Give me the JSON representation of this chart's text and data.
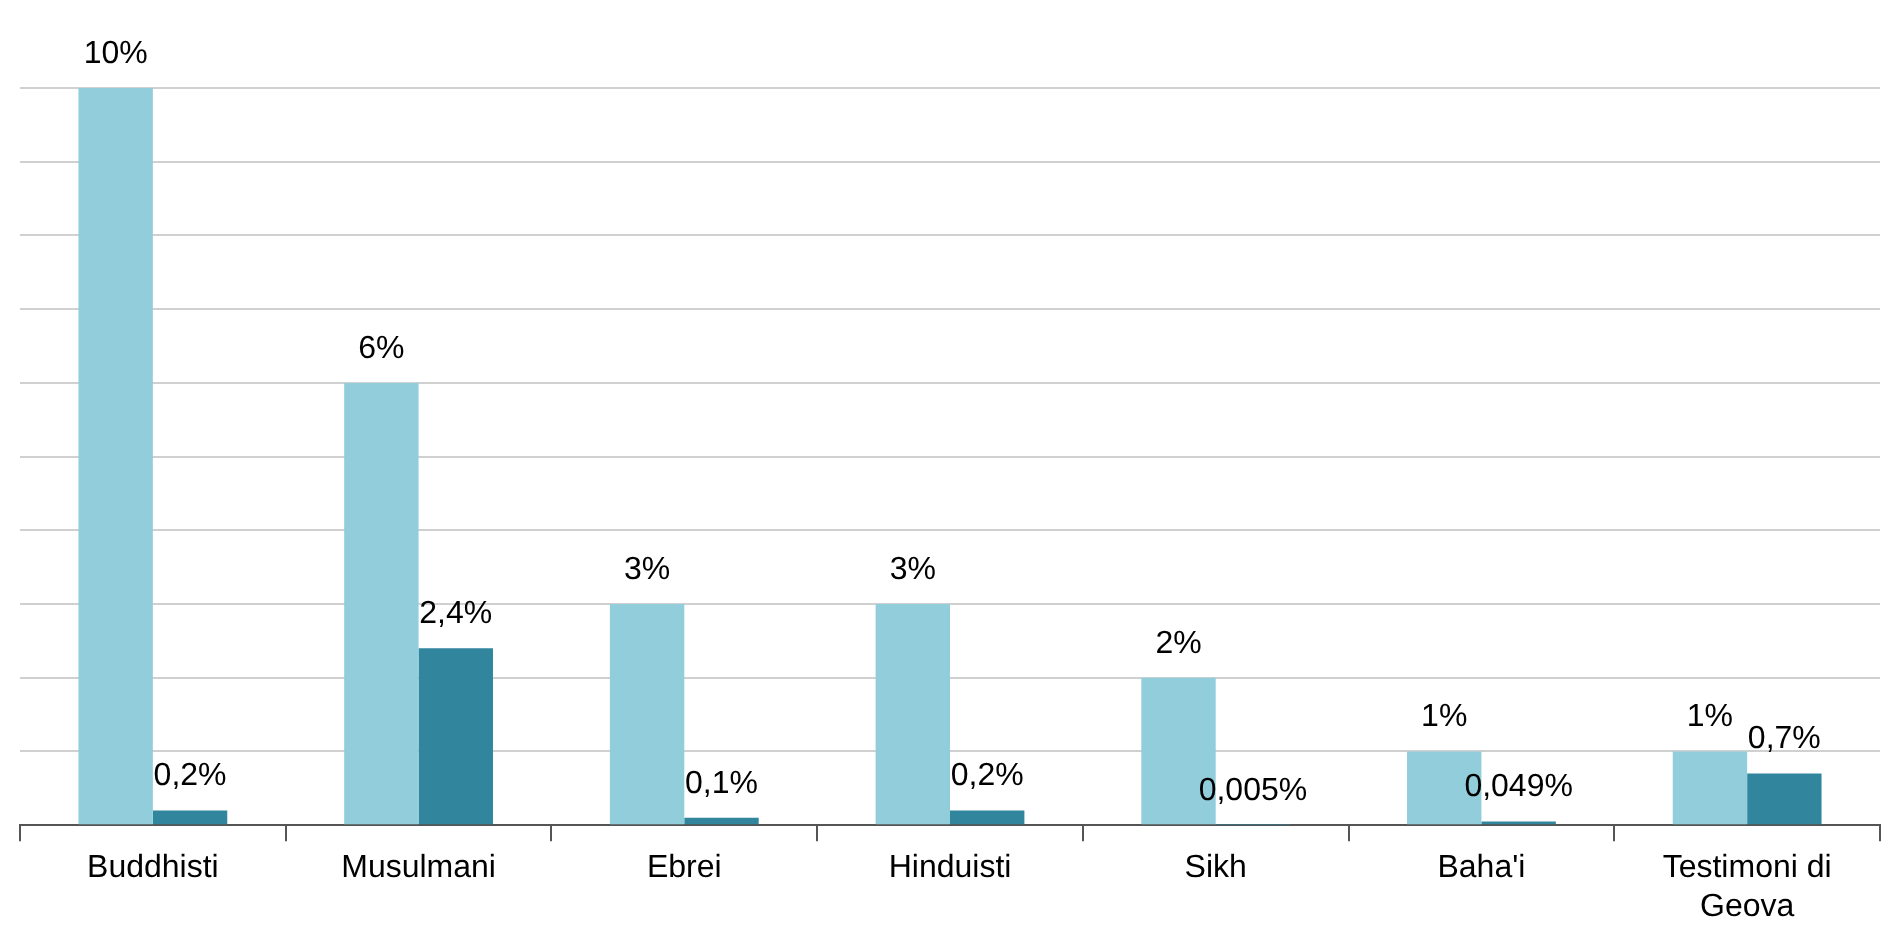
{
  "chart_data": {
    "type": "bar",
    "categories": [
      "Buddhisti",
      "Musulmani",
      "Ebrei",
      "Hinduisti",
      "Sikh",
      "Baha'i",
      "Testimoni di Geova"
    ],
    "series": [
      {
        "color": "#92cddc",
        "values": [
          10,
          6,
          3,
          3,
          2,
          1,
          1
        ],
        "value_labels": [
          "10%",
          "6%",
          "3%",
          "3%",
          "2%",
          "1%",
          "1%"
        ]
      },
      {
        "color": "#31859c",
        "values": [
          0.2,
          2.4,
          0.1,
          0.2,
          0.005,
          0.049,
          0.7
        ],
        "value_labels": [
          "0,2%",
          "2,4%",
          "0,1%",
          "0,2%",
          "0,005%",
          "0,049%",
          "0,7%"
        ]
      }
    ],
    "grid": "y",
    "tick_labels": "x",
    "legend": false
  }
}
